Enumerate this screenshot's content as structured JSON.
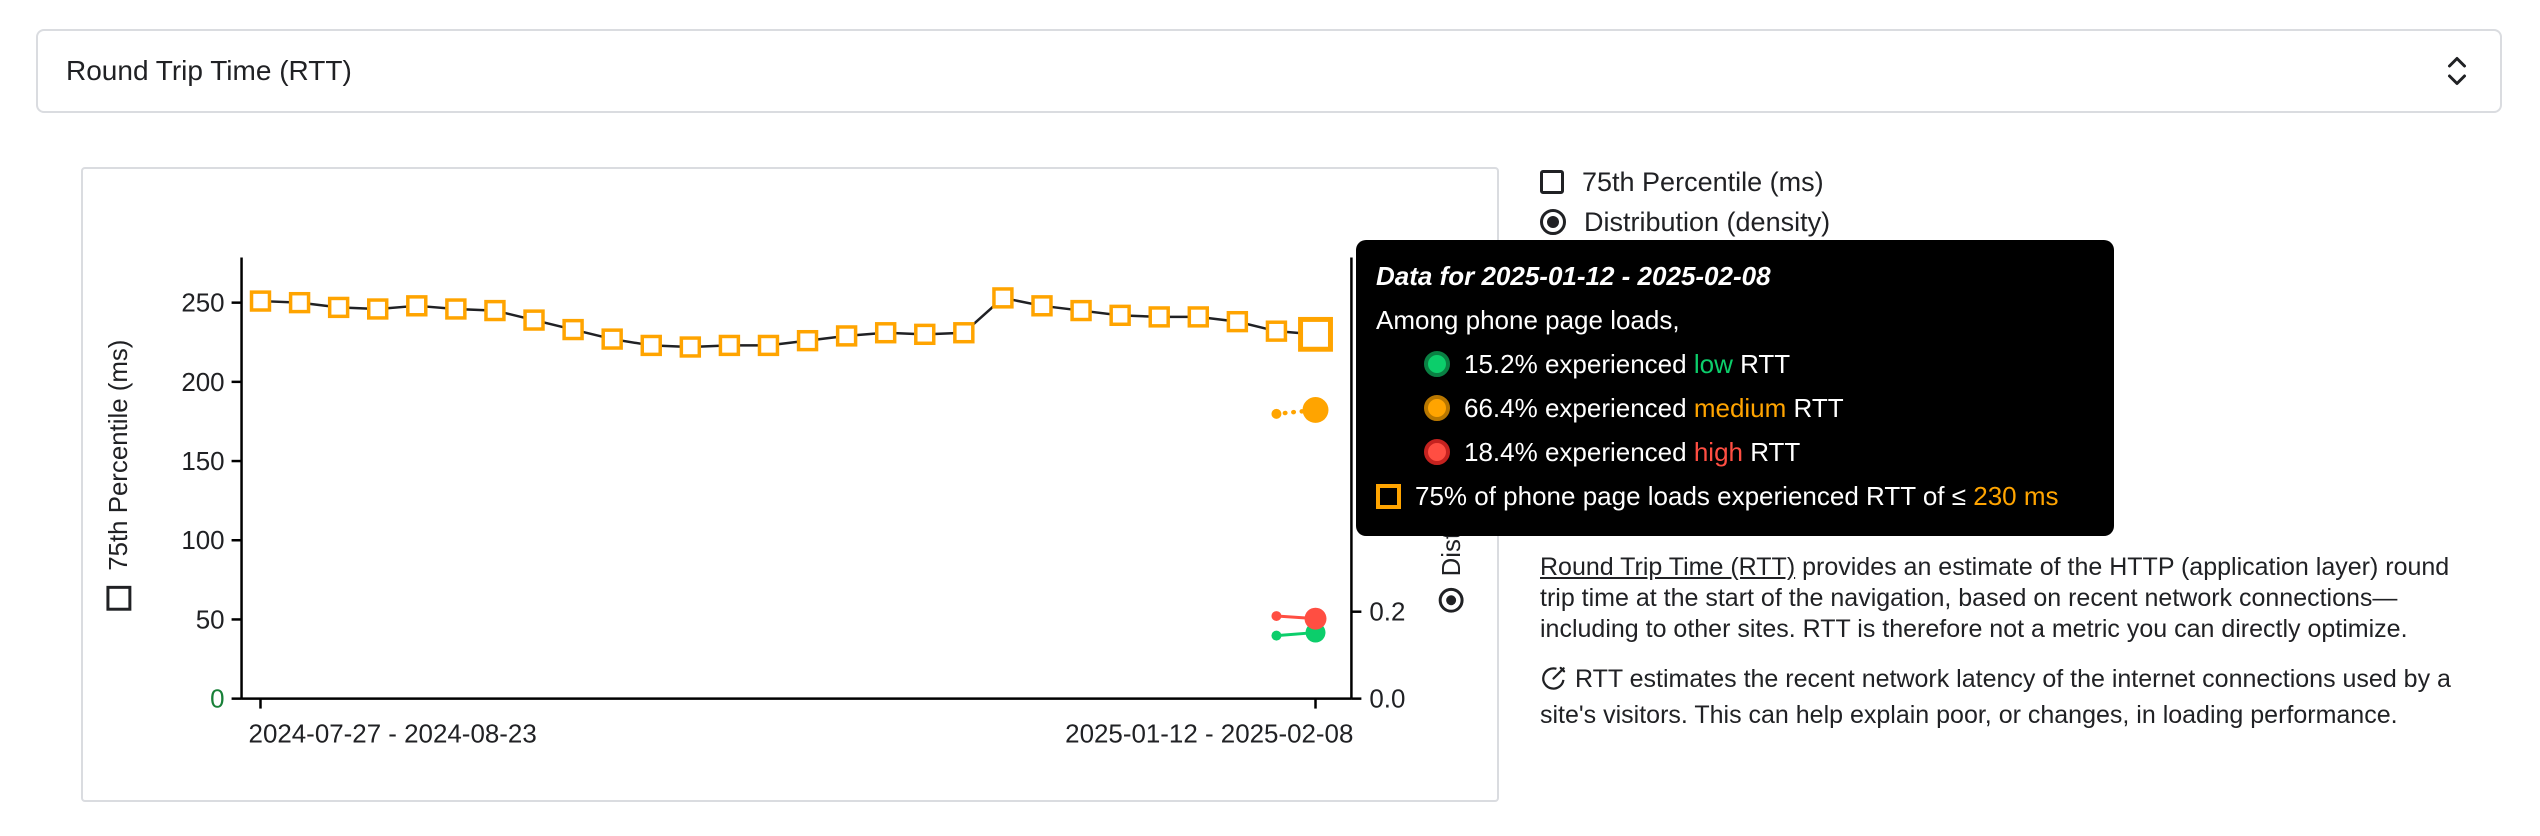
{
  "palette": {
    "green": "#0cce6b",
    "green_ring": "#0a8043",
    "orange": "#ffa400",
    "orange_ring": "#b87700",
    "red": "#ff4e42",
    "red_ring": "#c5221f",
    "axis_text": "#202124",
    "zero_tick_green": "#188038",
    "panel_border": "#dadce0",
    "tooltip_bg": "#000000"
  },
  "metric_selector": {
    "label": "Round Trip Time (RTT)"
  },
  "legend": {
    "percentile_label": "75th Percentile (ms)",
    "distribution_label": "Distribution (density)"
  },
  "chart_data": {
    "type": "line",
    "title": "Round Trip Time (RTT)",
    "x_axis": {
      "tick_labels": [
        "2024-07-27 - 2024-08-23",
        "2025-01-12 - 2025-02-08"
      ],
      "tick_point_indices": [
        0,
        27
      ]
    },
    "y_axis_left": {
      "label": "75th Percentile (ms)",
      "ticks": [
        0,
        50,
        100,
        150,
        200,
        250
      ]
    },
    "y_axis_right": {
      "label": "Distribution (density)",
      "ticks": [
        "0.0",
        "0.2"
      ]
    },
    "series": [
      {
        "name": "75th Percentile (ms)",
        "color": "orange",
        "marker": "open-square",
        "highlight_last": true,
        "values": [
          251,
          250,
          247,
          246,
          248,
          246,
          245,
          239,
          233,
          227,
          223,
          222,
          223,
          223,
          226,
          229,
          231,
          230,
          231,
          253,
          248,
          245,
          242,
          241,
          241,
          238,
          232,
          230
        ]
      }
    ],
    "distribution_series": [
      {
        "name": "low",
        "color": "green",
        "point_indices": [
          26,
          27
        ],
        "values": [
          0.145,
          0.152
        ],
        "line_style": "solid"
      },
      {
        "name": "medium",
        "color": "orange",
        "point_indices": [
          26,
          27
        ],
        "values": [
          0.655,
          0.664
        ],
        "line_style": "dotted"
      },
      {
        "name": "high",
        "color": "red",
        "point_indices": [
          26,
          27
        ],
        "values": [
          0.19,
          0.184
        ],
        "line_style": "solid"
      }
    ]
  },
  "tooltip": {
    "title": "Data for 2025-01-12 - 2025-02-08",
    "subtitle": "Among phone page loads,",
    "rows": [
      {
        "icon": "dot",
        "color": "green",
        "indent": true,
        "pre": "15.2% experienced ",
        "highlight": "low",
        "post": " RTT"
      },
      {
        "icon": "dot",
        "color": "orange",
        "indent": true,
        "pre": "66.4% experienced ",
        "highlight": "medium",
        "post": " RTT"
      },
      {
        "icon": "dot",
        "color": "red",
        "indent": true,
        "pre": "18.4% experienced ",
        "highlight": "high",
        "post": " RTT"
      },
      {
        "icon": "square",
        "color": "orange",
        "indent": false,
        "pre": "75% of phone page loads experienced RTT of ≤ ",
        "highlight": "230 ms",
        "post": ""
      }
    ]
  },
  "description": {
    "link_text": "Round Trip Time (RTT)",
    "paragraph1_rest": " provides an estimate of the HTTP (application layer) round trip time at the start of the navigation, based on recent network connections—including to other sites. RTT is therefore not a metric you can directly optimize.",
    "paragraph2": "RTT estimates the recent network latency of the internet connections used by a site's visitors. This can help explain poor, or changes, in loading performance."
  }
}
